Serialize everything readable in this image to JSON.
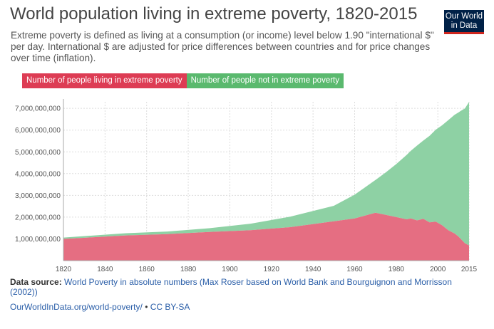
{
  "title": "World population living in extreme poverty, 1820-2015",
  "subtitle": "Extreme poverty is defined as living at a consumption (or income) level below 1.90 \"international $\" per day. International $ are adjusted for price differences between countries and for price changes over time (inflation).",
  "logo": {
    "line1": "Our World",
    "line2": "in Data",
    "bg_color": "#002147",
    "accent_color": "#ce261e"
  },
  "colors": {
    "extreme_poverty": "#e56e82",
    "not_poverty": "#8ed1a4",
    "legend_poverty": "#dd3c54",
    "legend_not_poverty": "#5ab96e"
  },
  "chart_data": {
    "type": "area",
    "stacked": true,
    "title": "World population living in extreme poverty, 1820-2015",
    "xlabel": "",
    "ylabel": "",
    "xlim": [
      1820,
      2015
    ],
    "ylim": [
      0,
      7300000000
    ],
    "grid": true,
    "legend_position": "top-left",
    "x_ticks": [
      1820,
      1840,
      1860,
      1880,
      1900,
      1920,
      1940,
      1960,
      1980,
      2000,
      2015
    ],
    "y_ticks": [
      1000000000,
      2000000000,
      3000000000,
      4000000000,
      5000000000,
      6000000000,
      7000000000
    ],
    "x_tick_labels": [
      "1820",
      "1840",
      "1860",
      "1880",
      "1900",
      "1920",
      "1940",
      "1960",
      "1980",
      "2000",
      "2015"
    ],
    "y_tick_labels": [
      "1,000,000,000",
      "2,000,000,000",
      "3,000,000,000",
      "4,000,000,000",
      "5,000,000,000",
      "6,000,000,000",
      "7,000,000,000"
    ],
    "x": [
      1820,
      1850,
      1870,
      1890,
      1910,
      1929,
      1950,
      1960,
      1970,
      1975,
      1980,
      1985,
      1987,
      1990,
      1993,
      1996,
      1999,
      2002,
      2005,
      2008,
      2010,
      2011,
      2012,
      2013,
      2015
    ],
    "series": [
      {
        "name": "Number of people living in extreme poverty",
        "values": [
          1000000000,
          1160000000,
          1220000000,
          1320000000,
          1400000000,
          1540000000,
          1810000000,
          1940000000,
          2200000000,
          2100000000,
          2000000000,
          1900000000,
          1940000000,
          1850000000,
          1920000000,
          1760000000,
          1790000000,
          1630000000,
          1400000000,
          1250000000,
          1100000000,
          1000000000,
          900000000,
          800000000,
          700000000
        ]
      },
      {
        "name": "Number of people not in extreme poverty",
        "values": [
          60000000,
          100000000,
          120000000,
          170000000,
          300000000,
          480000000,
          710000000,
          1090000000,
          1510000000,
          1960000000,
          2440000000,
          2960000000,
          3110000000,
          3440000000,
          3600000000,
          3980000000,
          4230000000,
          4590000000,
          5060000000,
          5450000000,
          5720000000,
          5880000000,
          6040000000,
          6200000000,
          6590000000
        ]
      }
    ]
  },
  "footer": {
    "source_label": "Data source:",
    "source_text": "World Poverty in absolute numbers (Max Roser based on World Bank and Bourguignon and Morrisson (2002))",
    "url": "OurWorldInData.org/world-poverty/",
    "license": "CC BY-SA"
  }
}
